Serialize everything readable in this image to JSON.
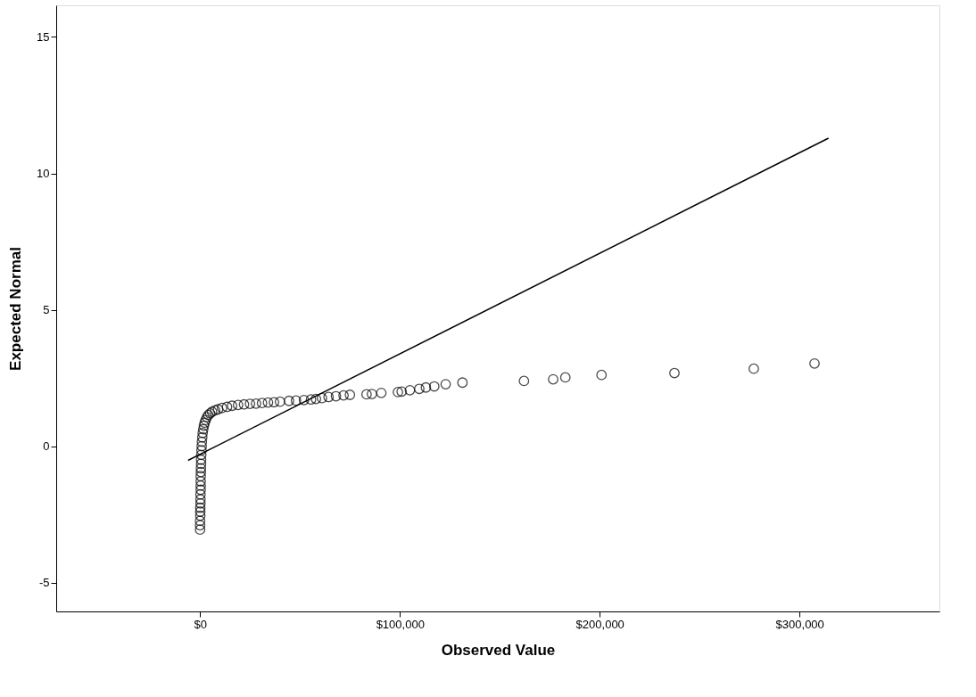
{
  "chart_data": {
    "type": "scatter",
    "xlabel": "Observed Value",
    "ylabel": "Expected Normal",
    "xlim": [
      -72000,
      370000
    ],
    "ylim": [
      -6.06,
      16.16
    ],
    "xticks": [
      {
        "value": 0,
        "label": "$0"
      },
      {
        "value": 100000,
        "label": "$100,000"
      },
      {
        "value": 200000,
        "label": "$200,000"
      },
      {
        "value": 300000,
        "label": "$300,000"
      }
    ],
    "yticks": [
      -5,
      0,
      5,
      10,
      15
    ],
    "grid": false,
    "marker": "circle",
    "series": [
      {
        "color": "#000000",
        "x": [
          0,
          0,
          0,
          100,
          100,
          100,
          200,
          200,
          200,
          300,
          300,
          300,
          300,
          400,
          400,
          500,
          500,
          600,
          700,
          800,
          900,
          1100,
          1300,
          1600,
          1900,
          2300,
          2800,
          3400,
          4100,
          5000,
          6000,
          7500,
          9000,
          11000,
          13500,
          16000,
          19000,
          22000,
          25000,
          28000,
          31000,
          34000,
          37000,
          40000,
          44500,
          48000,
          52000,
          55500,
          58000,
          61000,
          64300,
          68000,
          71800,
          75000,
          83300,
          86000,
          90700,
          99000,
          100900,
          105000,
          109700,
          113000,
          117200,
          122900,
          131300,
          162100,
          176700,
          182800,
          200900,
          237400,
          277100,
          307500
        ],
        "values": [
          -3.06,
          -2.9,
          -2.74,
          -2.55,
          -2.4,
          -2.26,
          -2.1,
          -1.95,
          -1.77,
          -1.6,
          -1.45,
          -1.29,
          -1.1,
          -0.95,
          -0.81,
          -0.65,
          -0.5,
          -0.32,
          -0.15,
          0.0,
          0.16,
          0.32,
          0.48,
          0.62,
          0.75,
          0.86,
          0.96,
          1.06,
          1.14,
          1.2,
          1.26,
          1.31,
          1.35,
          1.4,
          1.44,
          1.48,
          1.51,
          1.53,
          1.55,
          1.56,
          1.58,
          1.6,
          1.61,
          1.63,
          1.66,
          1.67,
          1.69,
          1.71,
          1.73,
          1.76,
          1.8,
          1.83,
          1.86,
          1.88,
          1.9,
          1.91,
          1.95,
          1.98,
          2.0,
          2.05,
          2.1,
          2.15,
          2.19,
          2.27,
          2.33,
          2.39,
          2.45,
          2.52,
          2.61,
          2.68,
          2.84,
          3.03
        ]
      },
      {
        "type": "line",
        "color": "#000000",
        "x": [
          -6000,
          314500
        ],
        "values": [
          -0.52,
          11.29
        ],
        "line_style": "solid",
        "marker": "none"
      }
    ]
  }
}
